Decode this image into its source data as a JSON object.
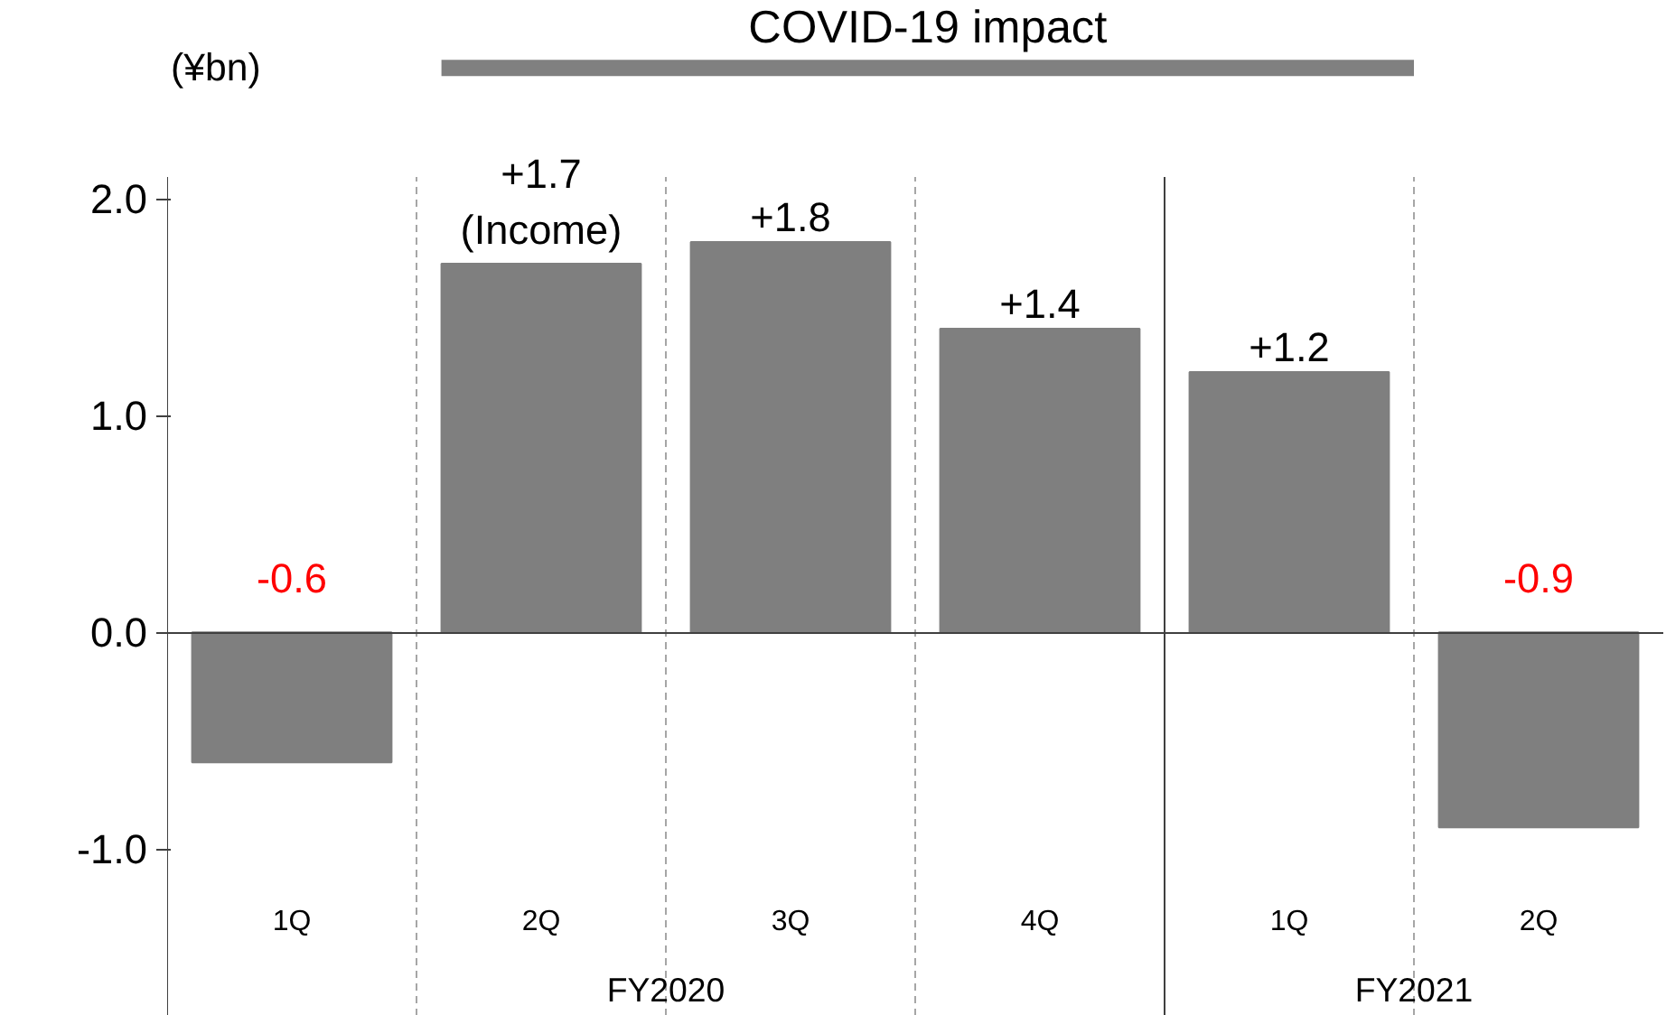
{
  "chart_data": {
    "type": "bar",
    "ylabel": "(¥bn)",
    "categories": [
      "1Q",
      "2Q",
      "3Q",
      "4Q",
      "1Q",
      "2Q"
    ],
    "values": [
      -0.6,
      1.7,
      1.8,
      1.4,
      1.2,
      -0.9
    ],
    "color": "#7f7f7f",
    "value_labels": [
      "-0.6",
      "+1.7\n(Income)",
      "+1.8",
      "+1.4",
      "+1.2",
      "-0.9"
    ],
    "ylim": [
      -1.77,
      2.1
    ],
    "yticks": [
      {
        "value": -1,
        "label": "-1.0"
      },
      {
        "value": 0,
        "label": "0.0"
      },
      {
        "value": 1,
        "label": "1.0"
      },
      {
        "value": 2,
        "label": "2.0"
      }
    ],
    "annotations": [
      "COVID-19 impact",
      "FY2020",
      "FY2021"
    ]
  }
}
